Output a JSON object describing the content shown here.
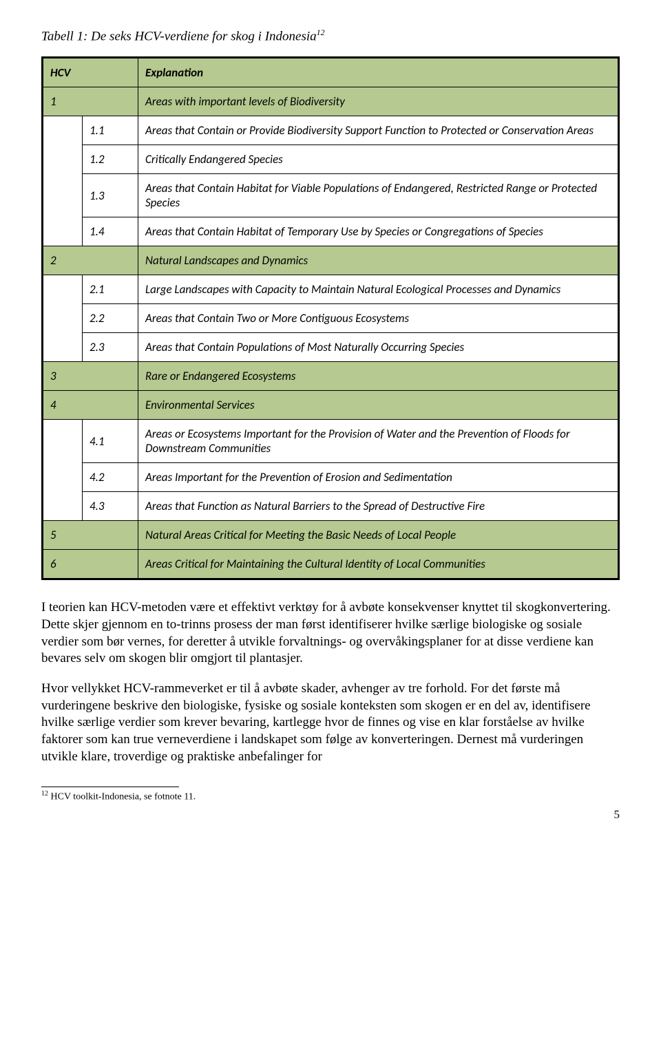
{
  "caption": {
    "text": "Tabell 1: De seks HCV-verdiene for skog i Indonesia",
    "sup": "12"
  },
  "tbl": {
    "hdr": {
      "c1": "HCV",
      "c2": "Explanation"
    },
    "r1": {
      "c1": "1",
      "c2": "Areas with important levels of Biodiversity"
    },
    "r11": {
      "c1": "1.1",
      "c2": "Areas that Contain or Provide Biodiversity Support Function to Protected or Conservation Areas"
    },
    "r12": {
      "c1": "1.2",
      "c2": "Critically Endangered Species"
    },
    "r13": {
      "c1": "1.3",
      "c2": "Areas that Contain Habitat for Viable Populations of Endangered, Restricted Range or Protected Species"
    },
    "r14": {
      "c1": "1.4",
      "c2": "Areas that Contain Habitat of Temporary Use by Species or Congregations of Species"
    },
    "r2": {
      "c1": "2",
      "c2": "Natural Landscapes and Dynamics"
    },
    "r21": {
      "c1": "2.1",
      "c2": "Large Landscapes with Capacity to Maintain Natural Ecological Processes and Dynamics"
    },
    "r22": {
      "c1": "2.2",
      "c2": "Areas that Contain Two or More Contiguous Ecosystems"
    },
    "r23": {
      "c1": "2.3",
      "c2": "Areas that Contain Populations of Most Naturally Occurring Species"
    },
    "r3": {
      "c1": "3",
      "c2": "Rare or Endangered Ecosystems"
    },
    "r4": {
      "c1": "4",
      "c2": "Environmental Services"
    },
    "r41": {
      "c1": "4.1",
      "c2": "Areas or Ecosystems Important for the Provision of Water and the Prevention of Floods for Downstream Communities"
    },
    "r42": {
      "c1": "4.2",
      "c2": "Areas Important for the Prevention of Erosion and Sedimentation"
    },
    "r43": {
      "c1": "4.3",
      "c2": "Areas that Function as Natural Barriers to the Spread of Destructive Fire"
    },
    "r5": {
      "c1": "5",
      "c2": "Natural Areas Critical for Meeting the Basic Needs of Local People"
    },
    "r6": {
      "c1": "6",
      "c2": "Areas Critical for Maintaining the Cultural Identity of Local Communities"
    }
  },
  "body": {
    "p1": "I teorien kan HCV-metoden være et effektivt verktøy for å avbøte konsekvenser knyttet til skogkonvertering. Dette skjer gjennom en to-trinns prosess der man først identifiserer hvilke særlige biologiske og sosiale verdier som bør vernes, for deretter å utvikle forvaltnings- og overvåkingsplaner for at disse verdiene kan bevares selv om skogen blir omgjort til plantasjer.",
    "p2": "Hvor vellykket HCV-rammeverket er til å avbøte skader, avhenger av tre forhold. For det første må vurderingene beskrive den biologiske, fysiske og sosiale konteksten som skogen er en del av, identifisere hvilke særlige verdier som krever bevaring, kartlegge hvor de finnes og vise en klar forståelse av hvilke faktorer som kan true verneverdiene i landskapet som følge av konverteringen. Dernest må vurderingen utvikle klare, troverdige og praktiske anbefalinger for"
  },
  "footnote": {
    "num": "12",
    "text": " HCV toolkit-Indonesia, se fotnote 11."
  },
  "pagenum": "5",
  "colors": {
    "shade": "#b5c990",
    "border": "#000000",
    "bg": "#ffffff"
  }
}
